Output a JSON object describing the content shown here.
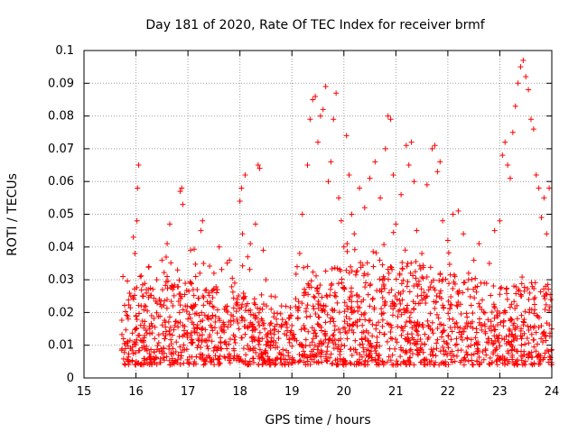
{
  "chart_data": {
    "type": "scatter",
    "title": "Day 181 of 2020, Rate Of TEC Index for receiver brmf",
    "xlabel": "GPS time / hours",
    "ylabel": "ROTI / TECUs",
    "xlim": [
      15,
      24
    ],
    "ylim": [
      0,
      0.1
    ],
    "xticks": [
      "15",
      "16",
      "17",
      "18",
      "19",
      "20",
      "21",
      "22",
      "23",
      "24"
    ],
    "yticks": [
      "0",
      "0.01",
      "0.02",
      "0.03",
      "0.04",
      "0.05",
      "0.06",
      "0.07",
      "0.08",
      "0.09",
      "0.1"
    ],
    "grid": true,
    "marker": "+",
    "series": [
      {
        "name": "ROTI",
        "color": "#ff0000",
        "points": [
          [
            15.75,
            0.031
          ],
          [
            15.76,
            0.012
          ],
          [
            15.8,
            0.009
          ],
          [
            15.85,
            0.018
          ],
          [
            15.9,
            0.025
          ],
          [
            15.95,
            0.043
          ],
          [
            15.98,
            0.038
          ],
          [
            16.0,
            0.015
          ],
          [
            16.02,
            0.048
          ],
          [
            16.03,
            0.058
          ],
          [
            16.05,
            0.065
          ],
          [
            16.08,
            0.031
          ],
          [
            16.1,
            0.022
          ],
          [
            16.15,
            0.011
          ],
          [
            16.2,
            0.027
          ],
          [
            16.25,
            0.034
          ],
          [
            16.3,
            0.019
          ],
          [
            16.35,
            0.008
          ],
          [
            16.4,
            0.03
          ],
          [
            16.45,
            0.024
          ],
          [
            16.5,
            0.036
          ],
          [
            16.55,
            0.012
          ],
          [
            16.6,
            0.041
          ],
          [
            16.65,
            0.047
          ],
          [
            16.7,
            0.028
          ],
          [
            16.75,
            0.016
          ],
          [
            16.8,
            0.033
          ],
          [
            16.85,
            0.057
          ],
          [
            16.88,
            0.058
          ],
          [
            16.9,
            0.053
          ],
          [
            16.95,
            0.022
          ],
          [
            17.0,
            0.018
          ],
          [
            17.05,
            0.039
          ],
          [
            17.1,
            0.027
          ],
          [
            17.15,
            0.031
          ],
          [
            17.2,
            0.01
          ],
          [
            17.25,
            0.045
          ],
          [
            17.28,
            0.048
          ],
          [
            17.3,
            0.035
          ],
          [
            17.4,
            0.026
          ],
          [
            17.5,
            0.032
          ],
          [
            17.6,
            0.04
          ],
          [
            17.7,
            0.021
          ],
          [
            17.8,
            0.036
          ],
          [
            17.9,
            0.029
          ],
          [
            18.0,
            0.054
          ],
          [
            18.03,
            0.058
          ],
          [
            18.05,
            0.044
          ],
          [
            18.1,
            0.062
          ],
          [
            18.15,
            0.037
          ],
          [
            18.2,
            0.041
          ],
          [
            18.3,
            0.047
          ],
          [
            18.35,
            0.065
          ],
          [
            18.38,
            0.064
          ],
          [
            18.45,
            0.039
          ],
          [
            18.5,
            0.03
          ],
          [
            18.6,
            0.025
          ],
          [
            18.7,
            0.018
          ],
          [
            18.8,
            0.022
          ],
          [
            18.9,
            0.013
          ],
          [
            19.0,
            0.016
          ],
          [
            19.1,
            0.034
          ],
          [
            19.15,
            0.038
          ],
          [
            19.2,
            0.05
          ],
          [
            19.3,
            0.065
          ],
          [
            19.35,
            0.079
          ],
          [
            19.4,
            0.085
          ],
          [
            19.45,
            0.086
          ],
          [
            19.5,
            0.072
          ],
          [
            19.55,
            0.08
          ],
          [
            19.6,
            0.082
          ],
          [
            19.65,
            0.089
          ],
          [
            19.7,
            0.06
          ],
          [
            19.75,
            0.066
          ],
          [
            19.8,
            0.079
          ],
          [
            19.85,
            0.087
          ],
          [
            19.9,
            0.055
          ],
          [
            19.95,
            0.048
          ],
          [
            20.0,
            0.04
          ],
          [
            20.05,
            0.074
          ],
          [
            20.1,
            0.062
          ],
          [
            20.15,
            0.05
          ],
          [
            20.2,
            0.044
          ],
          [
            20.3,
            0.058
          ],
          [
            20.4,
            0.052
          ],
          [
            20.5,
            0.061
          ],
          [
            20.6,
            0.066
          ],
          [
            20.7,
            0.055
          ],
          [
            20.8,
            0.07
          ],
          [
            20.85,
            0.08
          ],
          [
            20.9,
            0.079
          ],
          [
            20.95,
            0.062
          ],
          [
            21.0,
            0.047
          ],
          [
            21.1,
            0.056
          ],
          [
            21.2,
            0.071
          ],
          [
            21.25,
            0.065
          ],
          [
            21.3,
            0.072
          ],
          [
            21.35,
            0.06
          ],
          [
            21.4,
            0.045
          ],
          [
            21.5,
            0.038
          ],
          [
            21.6,
            0.059
          ],
          [
            21.7,
            0.07
          ],
          [
            21.75,
            0.071
          ],
          [
            21.8,
            0.063
          ],
          [
            21.85,
            0.066
          ],
          [
            21.9,
            0.048
          ],
          [
            22.0,
            0.042
          ],
          [
            22.1,
            0.05
          ],
          [
            22.2,
            0.051
          ],
          [
            22.3,
            0.044
          ],
          [
            22.4,
            0.032
          ],
          [
            22.5,
            0.036
          ],
          [
            22.6,
            0.041
          ],
          [
            22.7,
            0.029
          ],
          [
            22.8,
            0.035
          ],
          [
            22.9,
            0.045
          ],
          [
            23.0,
            0.048
          ],
          [
            23.05,
            0.068
          ],
          [
            23.1,
            0.072
          ],
          [
            23.15,
            0.065
          ],
          [
            23.2,
            0.061
          ],
          [
            23.25,
            0.075
          ],
          [
            23.3,
            0.083
          ],
          [
            23.35,
            0.09
          ],
          [
            23.4,
            0.095
          ],
          [
            23.45,
            0.097
          ],
          [
            23.5,
            0.092
          ],
          [
            23.55,
            0.088
          ],
          [
            23.6,
            0.079
          ],
          [
            23.65,
            0.076
          ],
          [
            23.7,
            0.062
          ],
          [
            23.75,
            0.058
          ],
          [
            23.8,
            0.049
          ],
          [
            23.85,
            0.055
          ],
          [
            23.9,
            0.044
          ],
          [
            23.95,
            0.058
          ]
        ]
      }
    ],
    "dense_band": {
      "note": "Dense cloud of additional ROTI samples between 15.7 h and 24 h",
      "x_range": [
        15.72,
        24
      ],
      "y_min": 0.004,
      "y_max_segments": [
        [
          15.72,
          0.024
        ],
        [
          16.0,
          0.03
        ],
        [
          17.0,
          0.03
        ],
        [
          18.0,
          0.028
        ],
        [
          18.9,
          0.018
        ],
        [
          19.2,
          0.03
        ],
        [
          20.0,
          0.035
        ],
        [
          21.0,
          0.036
        ],
        [
          22.0,
          0.033
        ],
        [
          23.0,
          0.028
        ],
        [
          24.0,
          0.03
        ]
      ]
    }
  }
}
